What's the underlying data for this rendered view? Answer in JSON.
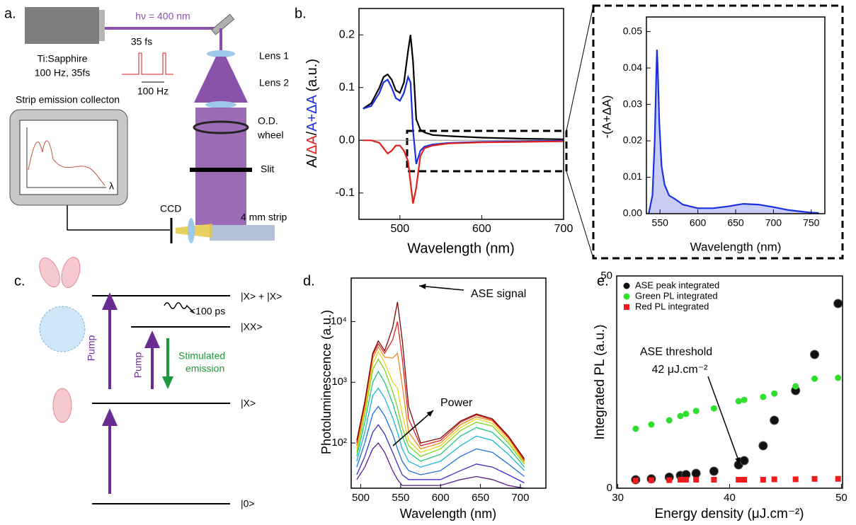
{
  "panel_labels": [
    "a.",
    "b.",
    "c.",
    "d.",
    "e."
  ],
  "panel_a": {
    "beam": "hν = 400 nm",
    "pulse_width": "35 fs",
    "rep_rate": "100 Hz",
    "laser": "Ti:Sapphire",
    "laser_spec": "100 Hz, 35fs",
    "lens1": "Lens 1",
    "lens2": "Lens 2",
    "wheel_1": "O.D.",
    "wheel_2": "wheel",
    "slit": "Slit",
    "ccd": "CCD",
    "strip": "4 mm strip",
    "collection": "Strip emission collecton",
    "lambda": "λ"
  },
  "panel_c": {
    "levels": [
      "|X> + |X>",
      "|XX>",
      "|X>",
      "|0>"
    ],
    "decay": "<100 ps",
    "pump_1": "Pump",
    "pump_2": "Pump",
    "stim_1": "Stimulated",
    "stim_2": "emission"
  },
  "chart_data": [
    {
      "type": "line",
      "xlabel": "Wavelength (nm)",
      "ylabel_parts": [
        {
          "text": "A/",
          "color": "#000000"
        },
        {
          "text": "ΔA",
          "color": "#e0201e"
        },
        {
          "text": "/",
          "color": "#000000"
        },
        {
          "text": "A+ΔA",
          "color": "#1a2fe0"
        },
        {
          "text": " (a.u.)",
          "color": "#000000"
        }
      ],
      "x": [
        455,
        465,
        475,
        480,
        485,
        490,
        495,
        500,
        505,
        510,
        513,
        516,
        520,
        525,
        530,
        540,
        560,
        600,
        650,
        700
      ],
      "series": [
        {
          "color": "#000000",
          "values": [
            0.06,
            0.07,
            0.1,
            0.12,
            0.125,
            0.115,
            0.095,
            0.09,
            0.11,
            0.17,
            0.2,
            0.15,
            0.04,
            0.02,
            0.015,
            0.01,
            0.008,
            0.005,
            0.003,
            0.002
          ]
        },
        {
          "color": "#1a2fe0",
          "values": [
            0.06,
            0.065,
            0.09,
            0.11,
            0.115,
            0.1,
            0.08,
            0.075,
            0.09,
            0.12,
            0.11,
            0.02,
            -0.045,
            -0.02,
            -0.012,
            -0.008,
            -0.005,
            -0.003,
            -0.002,
            -0.001
          ]
        },
        {
          "color": "#e0201e",
          "values": [
            0.0,
            0.0,
            -0.005,
            -0.015,
            -0.025,
            -0.02,
            -0.01,
            -0.01,
            -0.02,
            -0.04,
            -0.08,
            -0.12,
            -0.09,
            -0.03,
            -0.015,
            -0.01,
            -0.006,
            -0.004,
            -0.003,
            -0.002
          ]
        }
      ],
      "xlim": [
        450,
        700
      ],
      "ylim": [
        -0.15,
        0.25
      ],
      "xticks": [
        500,
        600,
        700
      ],
      "yticks": [
        -0.1,
        {
          "value": 0,
          "label": "0.0"
        },
        0.1,
        0.2
      ]
    },
    {
      "type": "area",
      "xlabel": "Wavelength (nm)",
      "ylabel": "-(A+ΔA)",
      "x": [
        535,
        540,
        543,
        545,
        546,
        547,
        549,
        552,
        556,
        562,
        570,
        580,
        600,
        620,
        640,
        660,
        680,
        700,
        720,
        740,
        750,
        760
      ],
      "series": [
        {
          "color": "#1a2fe0",
          "fill": "#c9cdf5",
          "values": [
            0.0,
            0.005,
            0.02,
            0.038,
            0.045,
            0.04,
            0.025,
            0.013,
            0.008,
            0.005,
            0.004,
            0.0025,
            0.0015,
            0.0015,
            0.002,
            0.0027,
            0.0025,
            0.0018,
            0.001,
            0.0005,
            0.0003,
            0.0002
          ]
        }
      ],
      "xlim": [
        532,
        768
      ],
      "ylim": [
        0,
        0.054
      ],
      "xticks": [
        550,
        600,
        650,
        700,
        750
      ],
      "yticks": [
        {
          "value": 0,
          "label": "0.00"
        },
        {
          "value": 0.01,
          "label": "0.01"
        },
        {
          "value": 0.02,
          "label": "0.02"
        },
        {
          "value": 0.03,
          "label": "0.03"
        },
        {
          "value": 0.04,
          "label": "0.04"
        },
        {
          "value": 0.05,
          "label": "0.05"
        }
      ]
    },
    {
      "type": "line",
      "log_y": true,
      "xlabel": "Wavelength (nm)",
      "ylabel": "Photoluminescence (a.u.)",
      "annotations": [
        "ASE signal",
        "Power"
      ],
      "x": [
        495,
        505,
        515,
        522,
        530,
        540,
        546,
        552,
        560,
        575,
        600,
        625,
        645,
        665,
        685,
        705
      ],
      "series": [
        {
          "color": "#5b1a8c",
          "values": [
            25,
            40,
            80,
            100,
            70,
            35,
            25,
            20,
            20,
            20,
            20,
            25,
            28,
            25,
            20,
            18
          ]
        },
        {
          "color": "#3a2fc0",
          "values": [
            30,
            60,
            150,
            200,
            140,
            70,
            45,
            30,
            25,
            25,
            25,
            35,
            45,
            40,
            30,
            22
          ]
        },
        {
          "color": "#1f6fe0",
          "values": [
            40,
            100,
            300,
            400,
            280,
            140,
            80,
            50,
            35,
            30,
            35,
            60,
            80,
            70,
            45,
            28
          ]
        },
        {
          "color": "#19b5d8",
          "values": [
            50,
            150,
            600,
            800,
            550,
            260,
            150,
            80,
            50,
            40,
            50,
            90,
            130,
            110,
            65,
            35
          ]
        },
        {
          "color": "#1fc77a",
          "values": [
            60,
            220,
            1000,
            1500,
            1000,
            450,
            250,
            130,
            70,
            50,
            65,
            130,
            180,
            150,
            85,
            40
          ]
        },
        {
          "color": "#7ad61e",
          "values": [
            70,
            300,
            1600,
            2400,
            1600,
            700,
            380,
            180,
            90,
            60,
            80,
            160,
            220,
            190,
            100,
            45
          ]
        },
        {
          "color": "#e8d61a",
          "values": [
            80,
            350,
            2000,
            3200,
            2100,
            1000,
            800,
            300,
            110,
            70,
            90,
            180,
            250,
            210,
            110,
            48
          ]
        },
        {
          "color": "#f28a1a",
          "values": [
            90,
            400,
            2500,
            3800,
            2600,
            2500,
            3000,
            900,
            150,
            80,
            100,
            200,
            270,
            230,
            120,
            50
          ]
        },
        {
          "color": "#e02020",
          "values": [
            100,
            450,
            2800,
            4300,
            3000,
            5000,
            10000,
            2500,
            250,
            90,
            110,
            220,
            290,
            240,
            125,
            52
          ]
        },
        {
          "color": "#7a0a0a",
          "values": [
            110,
            480,
            3000,
            4800,
            3300,
            8000,
            21000,
            5000,
            400,
            100,
            120,
            230,
            300,
            250,
            130,
            55
          ]
        }
      ],
      "xlim": [
        488,
        732
      ],
      "ylim": [
        18,
        52000
      ],
      "xticks": [
        500,
        550,
        600,
        650,
        700
      ],
      "yticks": [
        {
          "value": 100,
          "label": "10²"
        },
        {
          "value": 1000,
          "label": "10³"
        },
        {
          "value": 10000,
          "label": "10⁴"
        }
      ]
    },
    {
      "type": "scatter",
      "xlabel": "Energy density (μJ.cm⁻²)",
      "ylabel": "Integrated PL (a.u.)",
      "legend": "upper left",
      "annotations": [
        "ASE threshold",
        "42 μJ.cm⁻²"
      ],
      "x": [
        31.6,
        33,
        34.6,
        35.6,
        36.1,
        37,
        38.6,
        40.8,
        41.3,
        43,
        44,
        45.9,
        47.6,
        49.7
      ],
      "series": [
        {
          "name": "ASE peak integrated",
          "color": "#111111",
          "marker": "circle",
          "values": [
            2,
            2.2,
            2.6,
            3,
            3.2,
            3.5,
            4,
            5.5,
            6.5,
            10,
            16,
            23,
            31.5,
            43.5
          ]
        },
        {
          "name": "Green PL integrated",
          "color": "#2ee02e",
          "marker": "circle",
          "values": [
            14,
            15,
            16,
            17,
            17.5,
            18.2,
            18.8,
            20.5,
            20.8,
            21.5,
            22.3,
            24,
            25.8,
            26
          ]
        },
        {
          "name": "Red PL integrated",
          "color": "#ee1c1c",
          "marker": "square",
          "values": [
            1.8,
            1.9,
            1.9,
            2,
            2,
            2,
            2,
            2,
            2,
            2,
            2.1,
            2.1,
            2.2,
            2.2
          ]
        }
      ],
      "xlim": [
        29.9,
        50.1
      ],
      "ylim": [
        0,
        50
      ],
      "xticks": [
        30,
        40,
        50
      ],
      "yticks": [
        0,
        50
      ]
    }
  ]
}
